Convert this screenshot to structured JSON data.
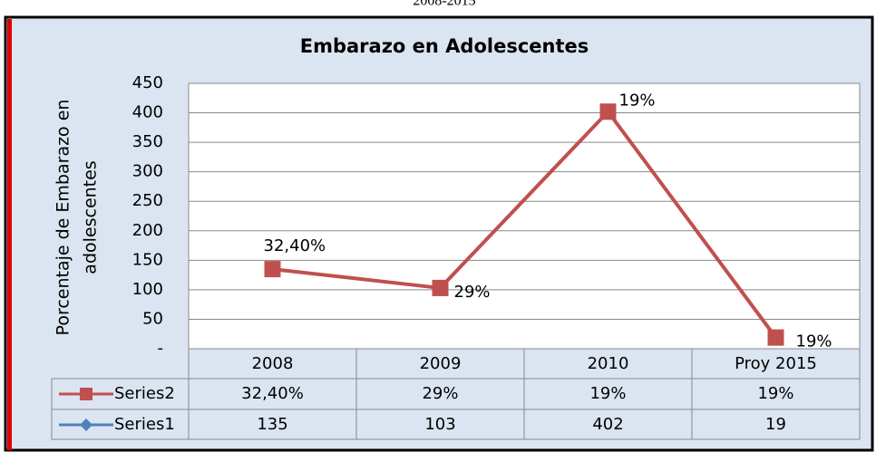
{
  "caption": "2008-2015",
  "chart_data": {
    "type": "line",
    "title": "Embarazo en Adolescentes",
    "ylabel": [
      "Porcentaje de Embarazo en",
      "adolescentes"
    ],
    "categories": [
      "2008",
      "2009",
      "2010",
      "Proy 2015"
    ],
    "series": [
      {
        "name": "Series2",
        "color": "#c0504d",
        "values": [
          32.4,
          29,
          19,
          19
        ],
        "value_labels": [
          "32,40%",
          "29%",
          "19%",
          "19%"
        ]
      },
      {
        "name": "Series1",
        "color": "#4f81bd",
        "values": [
          135,
          103,
          402,
          19
        ]
      }
    ],
    "ylim": [
      0,
      450
    ],
    "yticks": [
      {
        "value": 0,
        "label": "-"
      },
      50,
      100,
      150,
      200,
      250,
      300,
      350,
      400,
      450
    ],
    "grid": true,
    "data_table": true
  }
}
